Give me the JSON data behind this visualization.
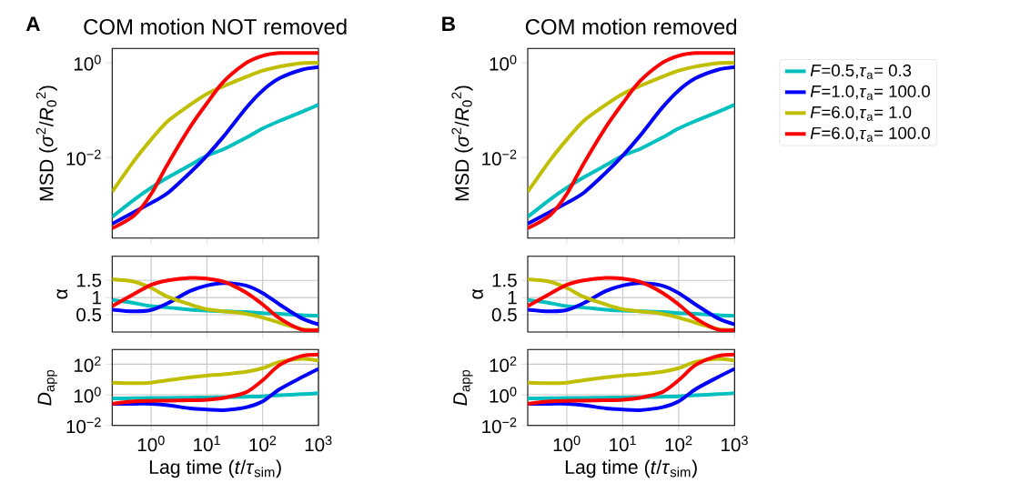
{
  "chart_data": [
    {
      "type": "line",
      "title": "COM motion NOT removed",
      "ylabel": "MSD (*σ*$^{2}$/*R*$_{0}$$^{2}$)",
      "annotations": [
        "A"
      ],
      "log": "xy",
      "grid": false,
      "marker": "none",
      "tick_labels": "y",
      "xlim": [
        0.2,
        1000
      ],
      "ylim": [
        0.0002,
        2
      ],
      "xticks": [
        {
          "value": 1,
          "label": null
        },
        {
          "value": 10,
          "label": null
        },
        {
          "value": 100,
          "label": null
        },
        {
          "value": 1000,
          "label": null
        }
      ],
      "yticks": [
        {
          "value": 0.01,
          "label": "10$^{−2}$"
        },
        {
          "value": 1,
          "label": "10$^{0}$"
        }
      ],
      "x": [
        0.2,
        0.5,
        1,
        2,
        5,
        10,
        20,
        50,
        100,
        200,
        500,
        1000
      ],
      "series": [
        {
          "color": "#00bfbf",
          "values": [
            0.00056,
            0.0013,
            0.0023,
            0.0038,
            0.0069,
            0.011,
            0.015,
            0.026,
            0.041,
            0.059,
            0.091,
            0.13
          ]
        },
        {
          "color": "#0000ff",
          "values": [
            0.0004,
            0.00071,
            0.0011,
            0.0018,
            0.0048,
            0.011,
            0.028,
            0.11,
            0.26,
            0.47,
            0.71,
            0.81
          ]
        },
        {
          "color": "#bfbf00",
          "values": [
            0.0019,
            0.0087,
            0.024,
            0.059,
            0.13,
            0.22,
            0.32,
            0.5,
            0.68,
            0.83,
            0.98,
            1.0
          ]
        },
        {
          "color": "#ff0000",
          "values": [
            0.00032,
            0.0006,
            0.0017,
            0.0074,
            0.044,
            0.14,
            0.4,
            0.98,
            1.4,
            1.6,
            1.6,
            1.6
          ]
        }
      ]
    },
    {
      "type": "line",
      "title": "COM motion removed",
      "ylabel": "MSD (*σ*$^{2}$/*R*$_{0}$$^{2}$)",
      "annotations": [
        "B"
      ],
      "log": "xy",
      "grid": false,
      "marker": "none",
      "tick_labels": "y",
      "legend": "right",
      "xlim": [
        0.2,
        1000
      ],
      "ylim": [
        0.0002,
        2
      ],
      "xticks": [
        {
          "value": 1,
          "label": null
        },
        {
          "value": 10,
          "label": null
        },
        {
          "value": 100,
          "label": null
        },
        {
          "value": 1000,
          "label": null
        }
      ],
      "yticks": [
        {
          "value": 0.01,
          "label": "10$^{−2}$"
        },
        {
          "value": 1,
          "label": "10$^{0}$"
        }
      ],
      "x": [
        0.2,
        0.5,
        1,
        2,
        5,
        10,
        20,
        50,
        100,
        200,
        500,
        1000
      ],
      "series": [
        {
          "name": "*F*=0.5,*τ*$_{a}$= 0.3",
          "color": "#00bfbf",
          "values": [
            0.00056,
            0.0013,
            0.0023,
            0.0038,
            0.0069,
            0.011,
            0.015,
            0.026,
            0.041,
            0.059,
            0.091,
            0.13
          ]
        },
        {
          "name": "*F*=1.0,*τ*$_{a}$= 100.0",
          "color": "#0000ff",
          "values": [
            0.0004,
            0.00071,
            0.0011,
            0.0018,
            0.0048,
            0.011,
            0.028,
            0.11,
            0.26,
            0.47,
            0.71,
            0.81
          ]
        },
        {
          "name": "*F*=6.0,*τ*$_{a}$= 1.0",
          "color": "#bfbf00",
          "values": [
            0.0019,
            0.0087,
            0.024,
            0.059,
            0.13,
            0.22,
            0.32,
            0.5,
            0.68,
            0.83,
            0.98,
            1.0
          ]
        },
        {
          "name": "*F*=6.0,*τ*$_{a}$= 100.0",
          "color": "#ff0000",
          "values": [
            0.00032,
            0.0006,
            0.0017,
            0.0074,
            0.044,
            0.14,
            0.4,
            0.98,
            1.4,
            1.6,
            1.6,
            1.6
          ]
        }
      ]
    },
    {
      "type": "line",
      "ylabel": "α",
      "log": "x",
      "grid": true,
      "marker": "none",
      "tick_labels": "y",
      "xlim": [
        0.2,
        1000
      ],
      "ylim": [
        0,
        2.2
      ],
      "xticks": [
        {
          "value": 1,
          "label": null
        },
        {
          "value": 10,
          "label": null
        },
        {
          "value": 100,
          "label": null
        },
        {
          "value": 1000,
          "label": null
        }
      ],
      "yticks": [
        0.5,
        1,
        1.5
      ],
      "x": [
        0.2,
        0.5,
        1,
        2,
        5,
        10,
        20,
        50,
        100,
        200,
        500,
        1000
      ],
      "series": [
        {
          "color": "#00bfbf",
          "values": [
            0.93,
            0.84,
            0.75,
            0.71,
            0.65,
            0.62,
            0.6,
            0.58,
            0.55,
            0.53,
            0.49,
            0.47
          ]
        },
        {
          "color": "#0000ff",
          "values": [
            0.65,
            0.6,
            0.64,
            0.84,
            1.19,
            1.35,
            1.42,
            1.35,
            1.13,
            0.8,
            0.4,
            0.22
          ]
        },
        {
          "color": "#bfbf00",
          "values": [
            1.53,
            1.46,
            1.28,
            1.02,
            0.8,
            0.66,
            0.6,
            0.53,
            0.42,
            0.27,
            0.09,
            0.06
          ]
        },
        {
          "color": "#ff0000",
          "values": [
            0.75,
            1.11,
            1.37,
            1.5,
            1.57,
            1.55,
            1.46,
            1.15,
            0.8,
            0.4,
            0.07,
            0.06
          ]
        }
      ]
    },
    {
      "type": "line",
      "ylabel": "α",
      "log": "x",
      "grid": true,
      "marker": "none",
      "tick_labels": "y",
      "xlim": [
        0.2,
        1000
      ],
      "ylim": [
        0,
        2.2
      ],
      "xticks": [
        {
          "value": 1,
          "label": null
        },
        {
          "value": 10,
          "label": null
        },
        {
          "value": 100,
          "label": null
        },
        {
          "value": 1000,
          "label": null
        }
      ],
      "yticks": [
        0.5,
        1,
        1.5
      ],
      "x": [
        0.2,
        0.5,
        1,
        2,
        5,
        10,
        20,
        50,
        100,
        200,
        500,
        1000
      ],
      "series": [
        {
          "color": "#00bfbf",
          "values": [
            0.93,
            0.84,
            0.75,
            0.71,
            0.65,
            0.62,
            null,
            0.58,
            0.55,
            0.53,
            0.49,
            0.47
          ]
        },
        {
          "color": "#0000ff",
          "values": [
            0.65,
            0.6,
            0.64,
            0.84,
            1.19,
            1.35,
            1.42,
            1.35,
            1.13,
            0.8,
            0.4,
            0.22
          ]
        },
        {
          "color": "#bfbf00",
          "values": [
            1.53,
            1.46,
            1.28,
            1.02,
            0.8,
            0.66,
            0.6,
            0.53,
            0.42,
            0.27,
            0.09,
            0.06
          ]
        },
        {
          "color": "#ff0000",
          "values": [
            0.75,
            1.11,
            1.37,
            1.5,
            1.57,
            1.55,
            1.46,
            1.15,
            0.8,
            0.4,
            0.07,
            0.06
          ]
        }
      ]
    },
    {
      "type": "line",
      "xlabel": "Lag time (*t*/*τ*$_{sim}$)",
      "ylabel": "*D*$_{app}$",
      "log": "xy",
      "grid": true,
      "marker": "none",
      "xlim": [
        0.2,
        1000
      ],
      "ylim": [
        0.01,
        900
      ],
      "xticks": [
        {
          "value": 1,
          "label": "10$^{0}$"
        },
        {
          "value": 10,
          "label": "10$^{1}$"
        },
        {
          "value": 100,
          "label": "10$^{2}$"
        },
        {
          "value": 1000,
          "label": "10$^{3}$"
        }
      ],
      "yticks": [
        {
          "value": 0.01,
          "label": "10$^{−2}$"
        },
        {
          "value": 1,
          "label": "10$^{0}$"
        },
        {
          "value": 100,
          "label": "10$^{2}$"
        }
      ],
      "x": [
        0.2,
        0.5,
        1,
        2,
        5,
        10,
        20,
        50,
        100,
        200,
        500,
        1000
      ],
      "series": [
        {
          "color": "#00bfbf",
          "values": [
            0.58,
            0.6,
            0.62,
            0.63,
            0.65,
            0.67,
            0.7,
            0.75,
            0.8,
            0.95,
            1.1,
            1.3
          ]
        },
        {
          "color": "#0000ff",
          "values": [
            0.26,
            0.26,
            0.26,
            0.21,
            0.13,
            0.11,
            0.1,
            0.15,
            0.37,
            2.3,
            14,
            50
          ]
        },
        {
          "color": "#bfbf00",
          "values": [
            6.2,
            5.7,
            6.2,
            8.9,
            14,
            18,
            22,
            32,
            55,
            140,
            220,
            170
          ]
        },
        {
          "color": "#ff0000",
          "values": [
            0.26,
            0.37,
            0.4,
            0.42,
            0.44,
            0.48,
            0.63,
            1.44,
            8.9,
            87,
            340,
            430
          ]
        }
      ]
    },
    {
      "type": "line",
      "xlabel": "Lag time (*t*/*τ*$_{sim}$)",
      "ylabel": "*D*$_{app}$",
      "log": "xy",
      "grid": true,
      "marker": "none",
      "xlim": [
        0.2,
        1000
      ],
      "ylim": [
        0.01,
        900
      ],
      "xticks": [
        {
          "value": 1,
          "label": "10$^{0}$"
        },
        {
          "value": 10,
          "label": "10$^{1}$"
        },
        {
          "value": 100,
          "label": "10$^{2}$"
        },
        {
          "value": 1000,
          "label": "10$^{3}$"
        }
      ],
      "yticks": [
        {
          "value": 0.01,
          "label": "10$^{−2}$"
        },
        {
          "value": 1,
          "label": "10$^{0}$"
        },
        {
          "value": 100,
          "label": "10$^{2}$"
        }
      ],
      "x": [
        0.2,
        0.5,
        1,
        2,
        5,
        10,
        20,
        50,
        100,
        200,
        500,
        1000
      ],
      "series": [
        {
          "color": "#00bfbf",
          "values": [
            0.58,
            0.6,
            0.62,
            0.63,
            0.65,
            0.67,
            0.7,
            0.75,
            0.8,
            0.95,
            1.1,
            1.3
          ]
        },
        {
          "color": "#0000ff",
          "values": [
            0.26,
            0.26,
            0.26,
            0.21,
            0.13,
            0.11,
            0.1,
            0.15,
            0.37,
            2.3,
            14,
            50
          ]
        },
        {
          "color": "#bfbf00",
          "values": [
            6.2,
            5.7,
            6.2,
            8.9,
            14,
            18,
            22,
            32,
            55,
            140,
            220,
            170
          ]
        },
        {
          "color": "#ff0000",
          "values": [
            0.26,
            0.37,
            0.4,
            0.42,
            0.44,
            0.48,
            0.63,
            1.44,
            8.9,
            87,
            340,
            430
          ]
        }
      ]
    }
  ]
}
